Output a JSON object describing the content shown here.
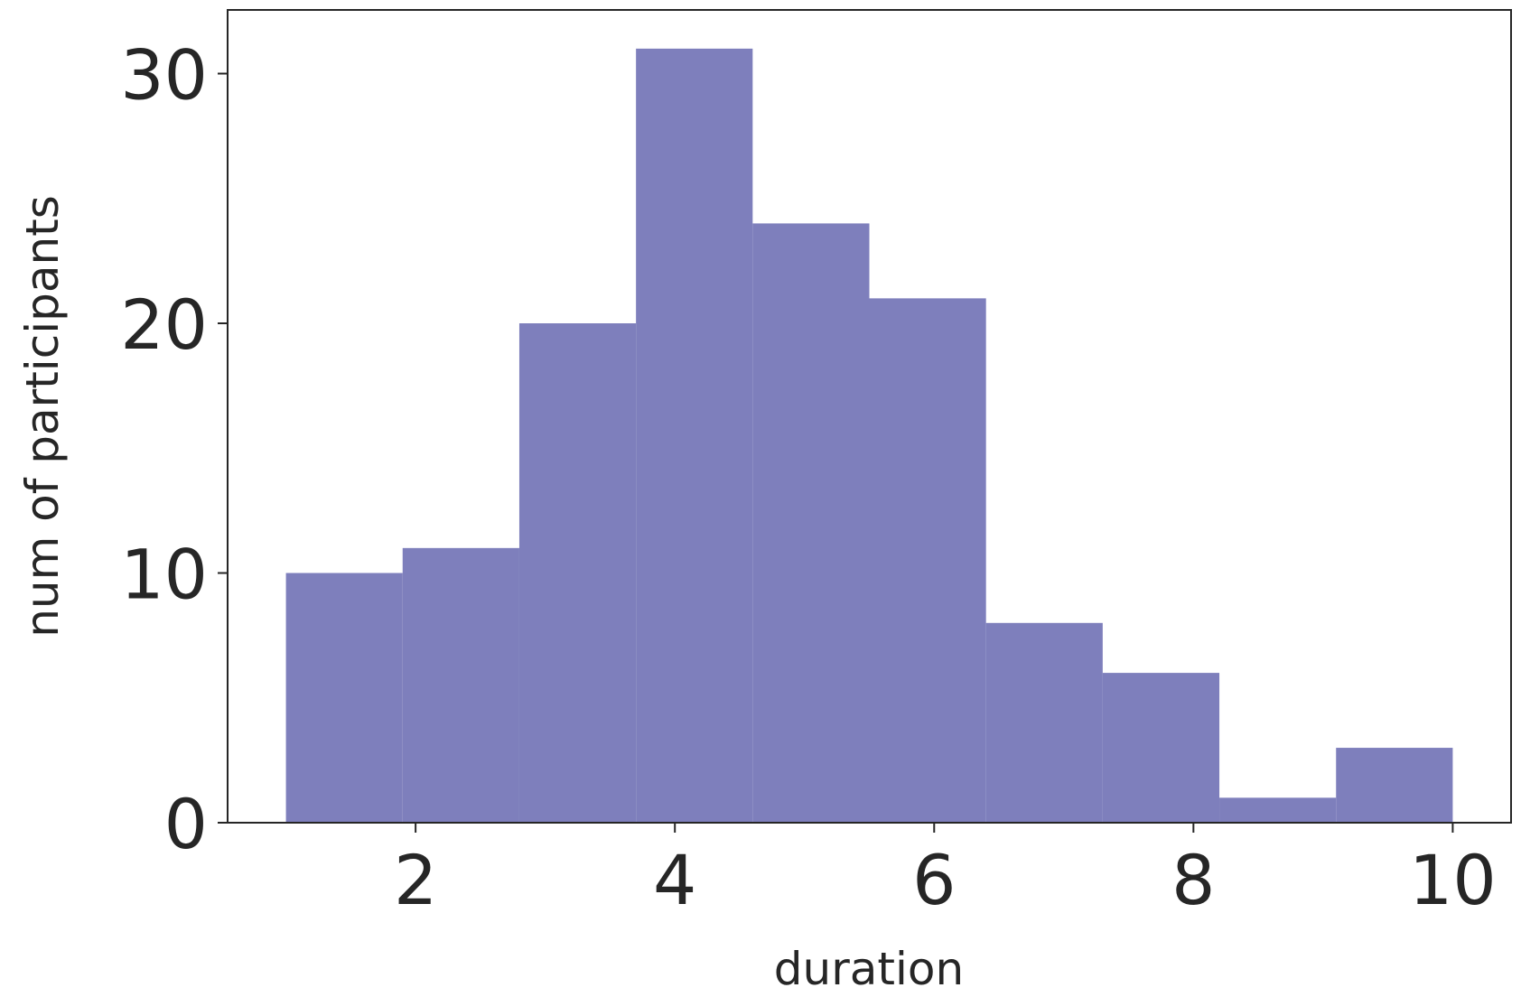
{
  "chart_data": {
    "type": "histogram",
    "x_label": "duration",
    "y_label": "num of participants",
    "bins": [
      1.0,
      1.9,
      2.8,
      3.7,
      4.6,
      5.5,
      6.4,
      7.3,
      8.2,
      9.1,
      10.0
    ],
    "values": [
      10,
      11,
      20,
      31,
      24,
      21,
      8,
      6,
      1,
      3
    ],
    "color": "#7e7fbc",
    "xlim": [
      0.55,
      10.45
    ],
    "ylim": [
      0,
      32.55
    ],
    "xticks": [
      2,
      4,
      6,
      8,
      10
    ],
    "yticks": [
      0,
      10,
      20,
      30
    ],
    "grid": false
  }
}
